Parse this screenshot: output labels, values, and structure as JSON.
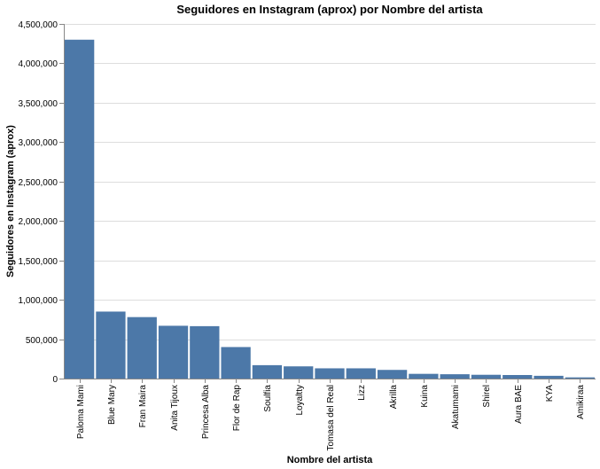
{
  "chart_data": {
    "type": "bar",
    "title": "Seguidores en Instagram (aprox) por Nombre del artista",
    "xlabel": "Nombre del artista",
    "ylabel": "Seguidores en Instagram (aprox)",
    "ylim": [
      0,
      4500000
    ],
    "y_ticks": [
      "0",
      "500,000",
      "1,000,000",
      "1,500,000",
      "2,000,000",
      "2,500,000",
      "3,000,000",
      "3,500,000",
      "4,000,000",
      "4,500,000"
    ],
    "grid": true,
    "bar_color": "#4c78a8",
    "categories": [
      "Paloma Mami",
      "Blue Mary",
      "Fran Maira",
      "Anita Tijoux",
      "Princesa Alba",
      "Flor de Rap",
      "Soulfia",
      "Loyaltty",
      "Tomasa del Real",
      "Lizz",
      "Akrilla",
      "Kuina",
      "Akatumami",
      "Shirel",
      "Aura BAE",
      "KYA",
      "Amikiraa"
    ],
    "values": [
      4300000,
      850000,
      780000,
      670000,
      665000,
      400000,
      170000,
      155000,
      130000,
      130000,
      110000,
      60000,
      55000,
      48000,
      45000,
      35000,
      15000
    ]
  }
}
